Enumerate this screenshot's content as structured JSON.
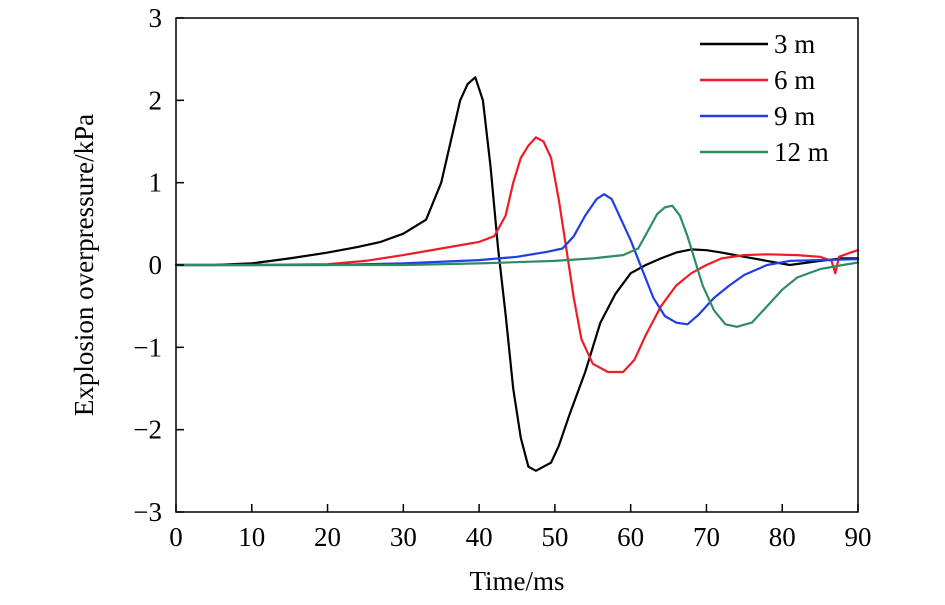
{
  "chart_data": {
    "type": "line",
    "xlabel": "Time/ms",
    "ylabel": "Explosion overpressure/kPa",
    "xlim": [
      0,
      90
    ],
    "ylim": [
      -3,
      3
    ],
    "xticks": [
      0,
      10,
      20,
      30,
      40,
      50,
      60,
      70,
      80,
      90
    ],
    "yticks": [
      -3,
      -2,
      -1,
      0,
      1,
      2,
      3
    ],
    "xtick_labels": [
      "0",
      "10",
      "20",
      "30",
      "40",
      "50",
      "60",
      "70",
      "80",
      "90"
    ],
    "ytick_labels": [
      "−3",
      "−2",
      "−1",
      "0",
      "1",
      "2",
      "3"
    ],
    "grid": false,
    "legend_position": "top-right",
    "series": [
      {
        "name": "3 m",
        "color": "#000000",
        "points": [
          [
            0,
            0
          ],
          [
            5,
            0
          ],
          [
            10,
            0.02
          ],
          [
            15,
            0.08
          ],
          [
            20,
            0.15
          ],
          [
            24,
            0.22
          ],
          [
            27,
            0.28
          ],
          [
            30,
            0.38
          ],
          [
            33,
            0.55
          ],
          [
            35,
            1.0
          ],
          [
            36.5,
            1.6
          ],
          [
            37.5,
            2.0
          ],
          [
            38.5,
            2.2
          ],
          [
            39.5,
            2.28
          ],
          [
            40.5,
            2.0
          ],
          [
            41.5,
            1.2
          ],
          [
            42.5,
            0.2
          ],
          [
            43.5,
            -0.6
          ],
          [
            44.5,
            -1.5
          ],
          [
            45.5,
            -2.1
          ],
          [
            46.5,
            -2.45
          ],
          [
            47.5,
            -2.5
          ],
          [
            48.5,
            -2.45
          ],
          [
            49.5,
            -2.4
          ],
          [
            50.5,
            -2.2
          ],
          [
            52,
            -1.8
          ],
          [
            54,
            -1.3
          ],
          [
            56,
            -0.7
          ],
          [
            58,
            -0.35
          ],
          [
            60,
            -0.1
          ],
          [
            62,
            0
          ],
          [
            64,
            0.08
          ],
          [
            66,
            0.15
          ],
          [
            68,
            0.19
          ],
          [
            70,
            0.18
          ],
          [
            72,
            0.15
          ],
          [
            75,
            0.1
          ],
          [
            78,
            0.05
          ],
          [
            81,
            0.0
          ],
          [
            85,
            0.05
          ],
          [
            88,
            0.08
          ],
          [
            90,
            0.08
          ]
        ]
      },
      {
        "name": "6 m",
        "color": "#ee1c25",
        "points": [
          [
            0,
            0
          ],
          [
            10,
            0
          ],
          [
            20,
            0.01
          ],
          [
            25,
            0.05
          ],
          [
            30,
            0.12
          ],
          [
            35,
            0.2
          ],
          [
            40,
            0.28
          ],
          [
            42,
            0.35
          ],
          [
            43.5,
            0.6
          ],
          [
            44.5,
            1.0
          ],
          [
            45.5,
            1.3
          ],
          [
            46.5,
            1.45
          ],
          [
            47.5,
            1.55
          ],
          [
            48.5,
            1.5
          ],
          [
            49.5,
            1.3
          ],
          [
            50.5,
            0.8
          ],
          [
            51.5,
            0.2
          ],
          [
            52.5,
            -0.4
          ],
          [
            53.5,
            -0.9
          ],
          [
            55,
            -1.2
          ],
          [
            57,
            -1.3
          ],
          [
            59,
            -1.3
          ],
          [
            60.5,
            -1.15
          ],
          [
            62,
            -0.85
          ],
          [
            64,
            -0.5
          ],
          [
            66,
            -0.25
          ],
          [
            68,
            -0.1
          ],
          [
            70,
            0.0
          ],
          [
            72,
            0.08
          ],
          [
            75,
            0.12
          ],
          [
            78,
            0.13
          ],
          [
            82,
            0.12
          ],
          [
            85,
            0.1
          ],
          [
            86.5,
            0.05
          ],
          [
            87,
            -0.1
          ],
          [
            87.5,
            0.1
          ],
          [
            89,
            0.15
          ],
          [
            90,
            0.18
          ]
        ]
      },
      {
        "name": "9 m",
        "color": "#1f3ee8",
        "points": [
          [
            0,
            0
          ],
          [
            20,
            0
          ],
          [
            30,
            0.02
          ],
          [
            40,
            0.06
          ],
          [
            45,
            0.1
          ],
          [
            49,
            0.16
          ],
          [
            51,
            0.2
          ],
          [
            52.5,
            0.35
          ],
          [
            54,
            0.6
          ],
          [
            55.5,
            0.8
          ],
          [
            56.5,
            0.86
          ],
          [
            57.5,
            0.8
          ],
          [
            58.5,
            0.6
          ],
          [
            60,
            0.3
          ],
          [
            61.5,
            -0.05
          ],
          [
            63,
            -0.4
          ],
          [
            64.5,
            -0.62
          ],
          [
            66,
            -0.7
          ],
          [
            67.5,
            -0.72
          ],
          [
            69,
            -0.6
          ],
          [
            71,
            -0.4
          ],
          [
            73,
            -0.25
          ],
          [
            75,
            -0.12
          ],
          [
            78,
            0.0
          ],
          [
            81,
            0.05
          ],
          [
            85,
            0.06
          ],
          [
            90,
            0.07
          ]
        ]
      },
      {
        "name": "12 m",
        "color": "#2e8b63",
        "points": [
          [
            0,
            0
          ],
          [
            30,
            0
          ],
          [
            40,
            0.02
          ],
          [
            50,
            0.05
          ],
          [
            55,
            0.08
          ],
          [
            59,
            0.12
          ],
          [
            61,
            0.2
          ],
          [
            62.5,
            0.45
          ],
          [
            63.5,
            0.62
          ],
          [
            64.5,
            0.7
          ],
          [
            65.5,
            0.72
          ],
          [
            66.5,
            0.6
          ],
          [
            67.5,
            0.35
          ],
          [
            68.5,
            0.05
          ],
          [
            69.5,
            -0.25
          ],
          [
            71,
            -0.55
          ],
          [
            72.5,
            -0.72
          ],
          [
            74,
            -0.75
          ],
          [
            76,
            -0.7
          ],
          [
            78,
            -0.5
          ],
          [
            80,
            -0.3
          ],
          [
            82,
            -0.15
          ],
          [
            85,
            -0.05
          ],
          [
            88,
            0.0
          ],
          [
            90,
            0.03
          ]
        ]
      }
    ]
  }
}
